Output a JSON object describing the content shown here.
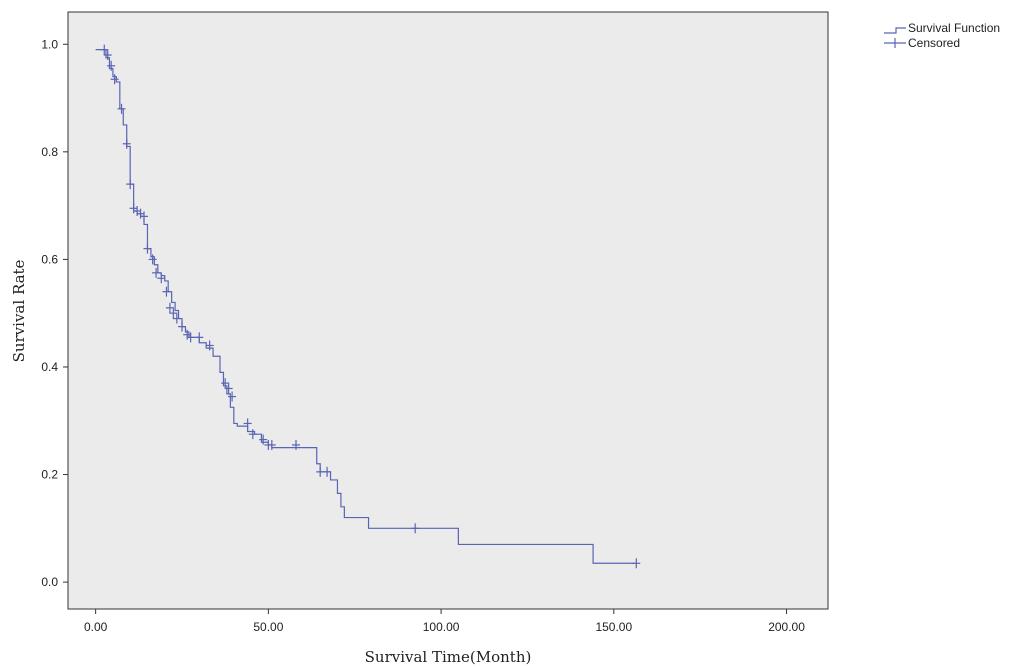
{
  "chart_data": {
    "type": "line",
    "subtype": "kaplan-meier-step",
    "xlabel": "Survival Time(Month)",
    "ylabel": "Survival Rate",
    "xlim": [
      -8,
      212
    ],
    "ylim": [
      -0.05,
      1.06
    ],
    "x_ticks": [
      0,
      50,
      100,
      150,
      200
    ],
    "x_tick_labels": [
      "0.00",
      "50.00",
      "100.00",
      "150.00",
      "200.00"
    ],
    "y_ticks": [
      0,
      0.2,
      0.4,
      0.6,
      0.8,
      1.0
    ],
    "y_tick_labels": [
      "0.0",
      "0.2",
      "0.4",
      "0.6",
      "0.8",
      "1.0"
    ],
    "grid": false,
    "plot_background": "#ebebeb",
    "line_color": "#5a64b4",
    "legend_position": "outside-top-right",
    "legend": [
      "Survival Function",
      "Censored"
    ],
    "series": [
      {
        "name": "Survival Function",
        "kind": "step",
        "x": [
          0,
          3,
          4,
          5,
          6,
          7,
          8,
          9,
          10,
          11,
          12,
          13,
          14,
          15,
          16,
          17,
          18,
          19,
          20,
          21,
          22,
          23,
          24,
          25,
          26,
          27,
          30,
          32,
          34,
          36,
          37,
          38,
          39,
          40,
          41,
          42,
          44,
          46,
          48,
          50,
          51,
          52,
          54,
          56,
          58,
          62,
          64,
          65,
          66,
          68,
          70,
          71,
          72,
          73,
          76,
          79,
          81,
          93,
          105,
          144,
          156
        ],
        "y": [
          0.99,
          0.975,
          0.955,
          0.94,
          0.93,
          0.88,
          0.85,
          0.81,
          0.74,
          0.69,
          0.685,
          0.68,
          0.665,
          0.62,
          0.605,
          0.59,
          0.575,
          0.57,
          0.56,
          0.54,
          0.52,
          0.505,
          0.49,
          0.475,
          0.465,
          0.455,
          0.445,
          0.435,
          0.42,
          0.39,
          0.365,
          0.35,
          0.325,
          0.295,
          0.29,
          0.29,
          0.28,
          0.275,
          0.26,
          0.255,
          0.25,
          0.25,
          0.25,
          0.25,
          0.25,
          0.25,
          0.22,
          0.205,
          0.205,
          0.19,
          0.165,
          0.14,
          0.12,
          0.12,
          0.12,
          0.1,
          0.1,
          0.1,
          0.07,
          0.035,
          0.035
        ]
      },
      {
        "name": "Censored",
        "kind": "marker-plus",
        "x": [
          2.5,
          3.5,
          4.5,
          5.5,
          7.5,
          9,
          10,
          11,
          12,
          13,
          14,
          15,
          16.5,
          17.5,
          19,
          20.5,
          21.5,
          22.5,
          23.5,
          25,
          26.5,
          27.5,
          30,
          33,
          37.5,
          38.5,
          39.5,
          44,
          45.5,
          48.5,
          50,
          51,
          58,
          65,
          67,
          92.5,
          156.5
        ],
        "y": [
          0.99,
          0.98,
          0.96,
          0.935,
          0.88,
          0.815,
          0.74,
          0.695,
          0.69,
          0.685,
          0.68,
          0.62,
          0.6,
          0.575,
          0.565,
          0.54,
          0.51,
          0.5,
          0.49,
          0.475,
          0.46,
          0.455,
          0.455,
          0.44,
          0.37,
          0.36,
          0.345,
          0.295,
          0.275,
          0.265,
          0.255,
          0.255,
          0.255,
          0.205,
          0.205,
          0.1,
          0.035
        ]
      }
    ]
  }
}
